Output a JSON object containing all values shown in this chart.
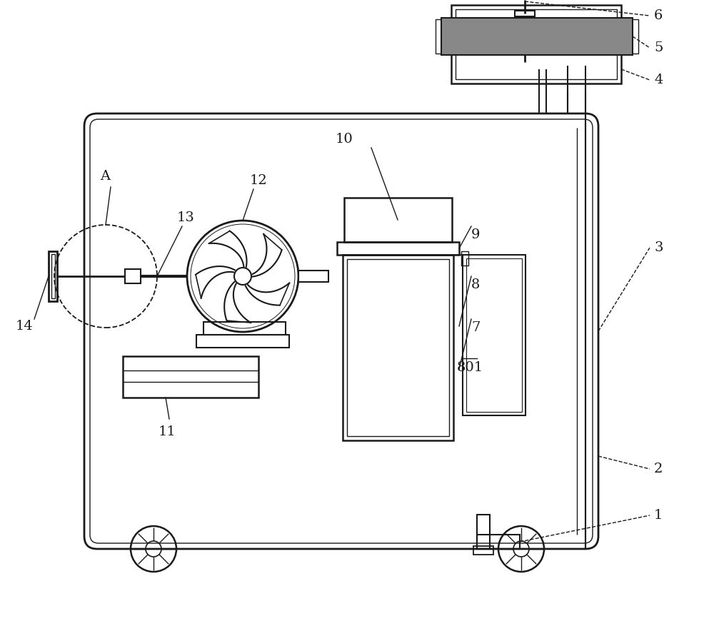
{
  "bg_color": "#ffffff",
  "lc": "#1a1a1a",
  "lw": 1.5,
  "figsize": [
    10.0,
    8.77
  ],
  "dpi": 100
}
